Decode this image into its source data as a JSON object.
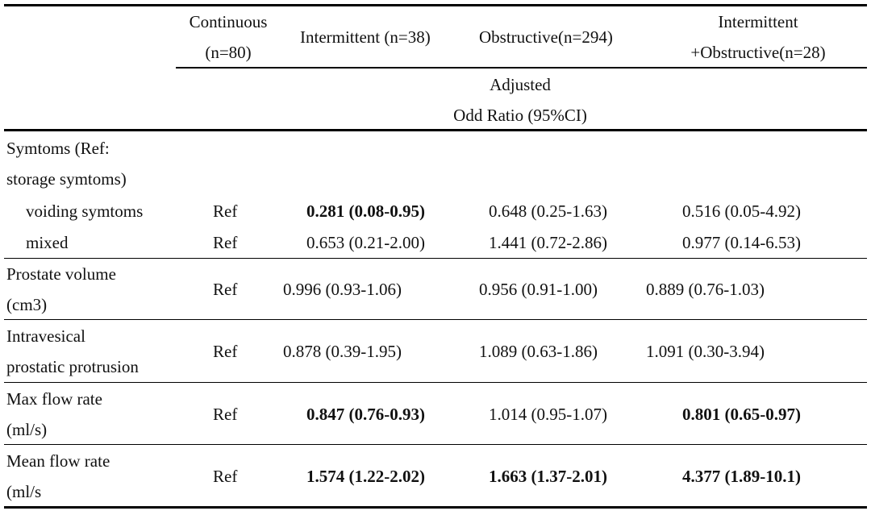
{
  "header": {
    "col1": [
      "Continuous",
      "(n=80)"
    ],
    "col2": "Intermittent (n=38)",
    "col3": "Obstructive(n=294)",
    "col4": [
      "Intermittent",
      "+Obstructive(n=28)"
    ],
    "adjusted": [
      "Adjusted",
      "Odd Ratio (95%CI)"
    ]
  },
  "rows": {
    "symptoms_label": [
      "Symtoms (Ref:",
      "storage symtoms)"
    ],
    "voiding": {
      "label": "voiding symtoms",
      "ref": "Ref",
      "v1": "0.281 (0.08-0.95)",
      "v2": "0.648 (0.25-1.63)",
      "v3": "0.516 (0.05-4.92)",
      "bold": [
        true,
        false,
        false
      ]
    },
    "mixed": {
      "label": "mixed",
      "ref": "Ref",
      "v1": "0.653 (0.21-2.00)",
      "v2": "1.441 (0.72-2.86)",
      "v3": "0.977 (0.14-6.53)",
      "bold": [
        false,
        false,
        false
      ]
    },
    "prostate": {
      "label": [
        "Prostate volume",
        "(cm3)"
      ],
      "ref": "Ref",
      "v1": "0.996 (0.93-1.06)",
      "v2": "0.956 (0.91-1.00)",
      "v3": "0.889 (0.76-1.03)",
      "bold": [
        false,
        false,
        false
      ]
    },
    "ipp": {
      "label": [
        "Intravesical",
        "prostatic protrusion"
      ],
      "ref": "Ref",
      "v1": "0.878 (0.39-1.95)",
      "v2": "1.089 (0.63-1.86)",
      "v3": "1.091 (0.30-3.94)",
      "bold": [
        false,
        false,
        false
      ]
    },
    "maxflow": {
      "label": [
        "Max flow rate",
        "(ml/s)"
      ],
      "ref": "Ref",
      "v1": "0.847 (0.76-0.93)",
      "v2": "1.014 (0.95-1.07)",
      "v3": "0.801 (0.65-0.97)",
      "bold": [
        true,
        false,
        true
      ]
    },
    "meanflow": {
      "label": [
        "Mean flow rate",
        "(ml/s"
      ],
      "ref": "Ref",
      "v1": "1.574 (1.22-2.02)",
      "v2": "1.663 (1.37-2.01)",
      "v3": "4.377 (1.89-10.1)",
      "bold": [
        true,
        true,
        true
      ]
    }
  }
}
